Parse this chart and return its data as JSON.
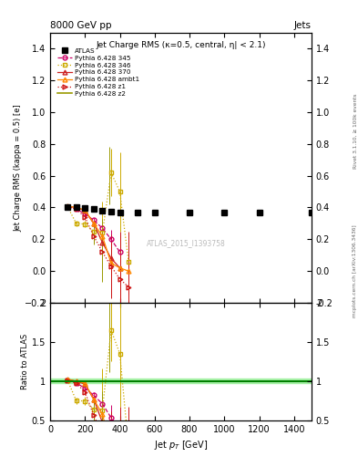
{
  "title_top": "8000 GeV pp",
  "title_right": "Jets",
  "plot_title": "Jet Charge RMS (κ=0.5, central, η| < 2.1)",
  "ylabel_main": "Jet Charge RMS (kappa = 0.5) [e]",
  "ylabel_ratio": "Ratio to ATLAS",
  "xlabel": "Jet $p_T$ [GeV]",
  "watermark": "ATLAS_2015_I1393758",
  "right_label_top": "Rivet 3.1.10, ≥ 100k events",
  "right_label_bot": "mcplots.cern.ch [arXiv:1306.3436]",
  "atlas_x": [
    100,
    150,
    200,
    250,
    300,
    350,
    400,
    500,
    600,
    800,
    1000,
    1200,
    1500
  ],
  "atlas_y": [
    0.4,
    0.4,
    0.395,
    0.39,
    0.38,
    0.375,
    0.37,
    0.37,
    0.368,
    0.368,
    0.368,
    0.368,
    0.368
  ],
  "atlas_yerr": [
    0.008,
    0.005,
    0.005,
    0.005,
    0.005,
    0.005,
    0.005,
    0.004,
    0.004,
    0.004,
    0.004,
    0.004,
    0.004
  ],
  "py345_x": [
    100,
    150,
    200,
    250,
    300,
    350,
    400
  ],
  "py345_y": [
    0.405,
    0.39,
    0.36,
    0.32,
    0.27,
    0.2,
    0.12
  ],
  "py345_yerr": [
    0.008,
    0.008,
    0.01,
    0.015,
    0.025,
    0.06,
    0.1
  ],
  "py346_x": [
    100,
    150,
    200,
    250,
    300,
    350,
    400,
    450
  ],
  "py346_y": [
    0.405,
    0.3,
    0.295,
    0.25,
    0.24,
    0.62,
    0.5,
    0.06
  ],
  "py346_yerr": [
    0.008,
    0.015,
    0.02,
    0.03,
    0.2,
    0.15,
    0.25,
    0.05
  ],
  "py370_x": [
    100,
    150,
    200,
    250,
    300,
    350,
    400
  ],
  "py370_y": [
    0.408,
    0.4,
    0.38,
    0.3,
    0.18,
    0.08,
    0.02
  ],
  "py370_yerr": [
    0.008,
    0.008,
    0.01,
    0.02,
    0.06,
    0.1,
    0.12
  ],
  "pyambt1_x": [
    100,
    150,
    200,
    250,
    300,
    350,
    400,
    450
  ],
  "pyambt1_y": [
    0.408,
    0.4,
    0.385,
    0.3,
    0.22,
    0.05,
    0.02,
    0.0
  ],
  "pyambt1_yerr": [
    0.008,
    0.008,
    0.01,
    0.025,
    0.05,
    0.08,
    0.2,
    0.15
  ],
  "pyz1_x": [
    100,
    150,
    200,
    250,
    300,
    350,
    400,
    450
  ],
  "pyz1_y": [
    0.405,
    0.39,
    0.34,
    0.22,
    0.12,
    0.03,
    -0.05,
    -0.1
  ],
  "pyz1_yerr": [
    0.008,
    0.008,
    0.015,
    0.04,
    0.1,
    0.2,
    0.3,
    0.35
  ],
  "pyz2_x": [
    100,
    150,
    200,
    250,
    300,
    340
  ],
  "pyz2_y": [
    0.408,
    0.4,
    0.375,
    0.23,
    0.13,
    0.6
  ],
  "pyz2_yerr": [
    0.008,
    0.008,
    0.015,
    0.06,
    0.2,
    0.18
  ],
  "ylim_main": [
    -0.2,
    1.5
  ],
  "ylim_ratio": [
    0.5,
    2.0
  ],
  "xlim": [
    0,
    1500
  ],
  "color_atlas": "#000000",
  "color_345": "#cc0066",
  "color_346": "#ccaa00",
  "color_370": "#cc2222",
  "color_ambt1": "#ff8800",
  "color_z1": "#cc1111",
  "color_z2": "#999900",
  "yticks_main": [
    -0.2,
    0.0,
    0.2,
    0.4,
    0.6,
    0.8,
    1.0,
    1.2,
    1.4
  ],
  "yticks_ratio": [
    0.5,
    1.0,
    1.5,
    2.0
  ]
}
